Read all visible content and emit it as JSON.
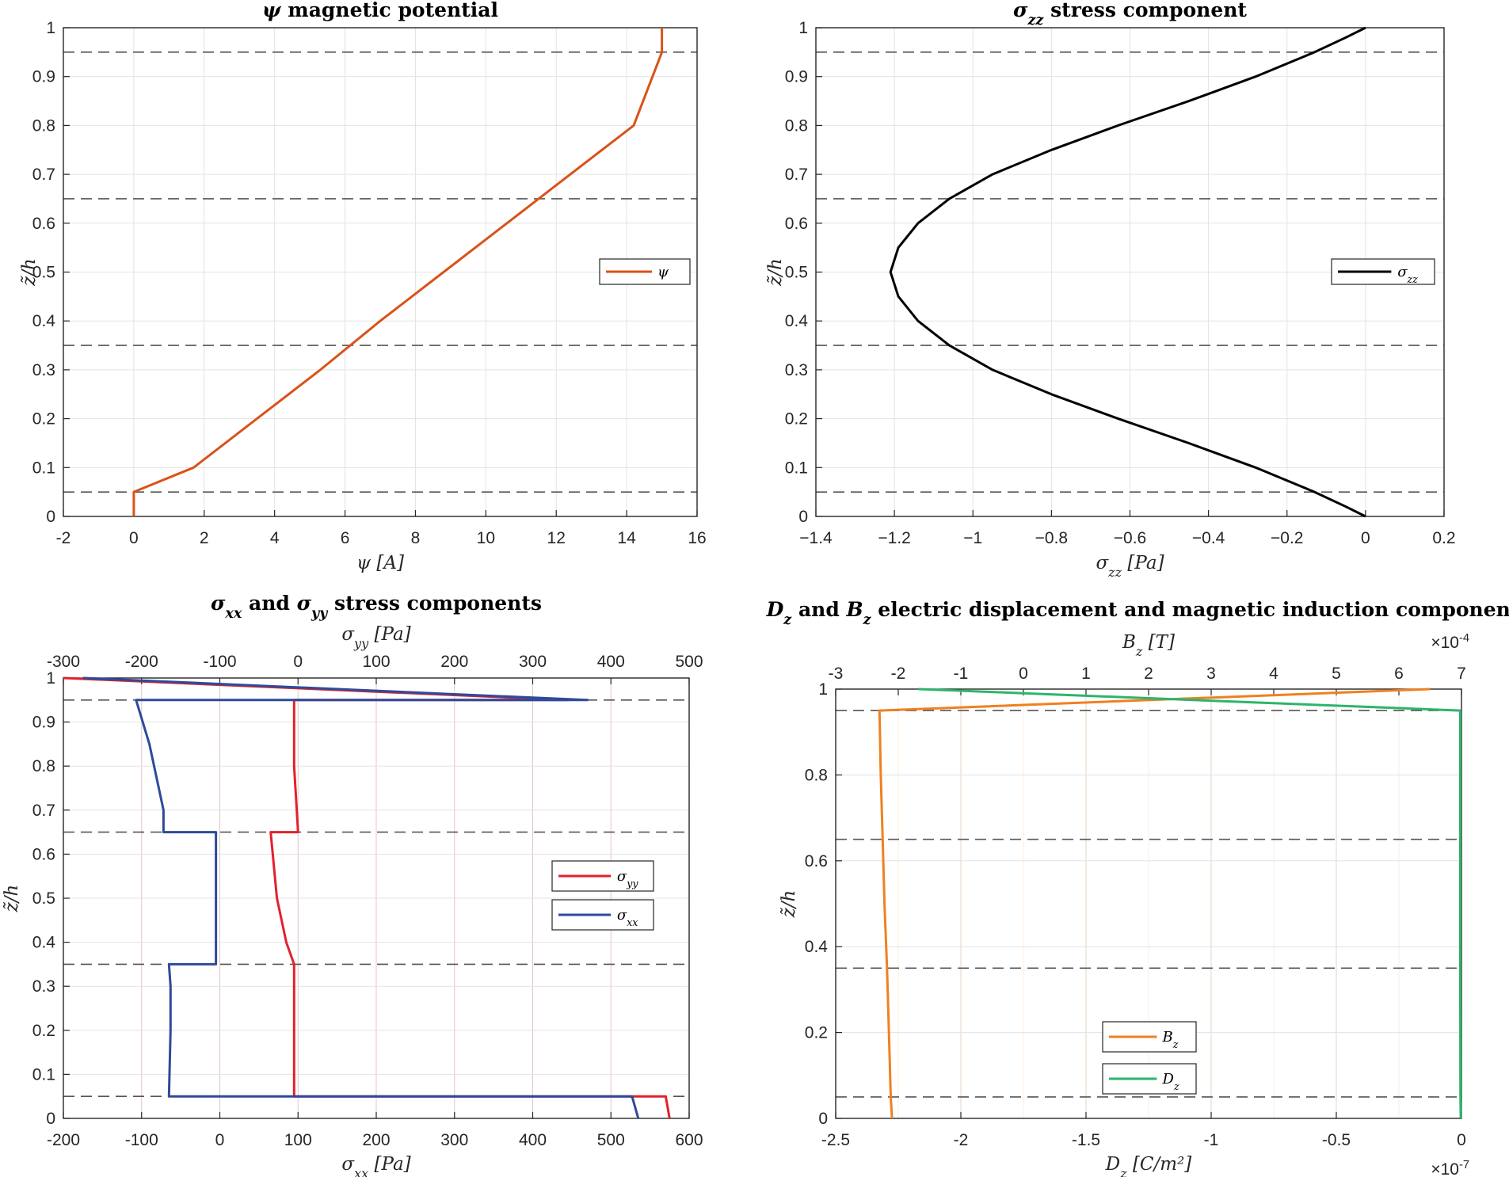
{
  "figure": {
    "layer_boundaries": [
      0.05,
      0.35,
      0.65,
      0.95
    ]
  },
  "chart_data": [
    {
      "id": "psi",
      "type": "line",
      "title": "ψ magnetic potential",
      "xlabel": "ψ [A]",
      "ylabel": "z̃/h",
      "xlim": [
        -2,
        16
      ],
      "ylim": [
        0,
        1
      ],
      "xticks": [
        -2,
        0,
        2,
        4,
        6,
        8,
        10,
        12,
        14,
        16
      ],
      "xtick_labels": [
        "-2",
        "0",
        "2",
        "4",
        "6",
        "8",
        "10",
        "12",
        "14",
        "16"
      ],
      "yticks": [
        0,
        0.1,
        0.2,
        0.3,
        0.4,
        0.5,
        0.6,
        0.7,
        0.8,
        0.9,
        1
      ],
      "ytick_labels": [
        "0",
        "0.1",
        "0.2",
        "0.3",
        "0.4",
        "0.5",
        "0.6",
        "0.7",
        "0.8",
        "0.9",
        "1"
      ],
      "grid": true,
      "legend_position": "right",
      "series": [
        {
          "name": "ψ",
          "color": "#D95319",
          "x": [
            0,
            0,
            1.7,
            3.5,
            5.3,
            7.0,
            8.8,
            10.6,
            12.4,
            14.2,
            15.0,
            15.0
          ],
          "y": [
            0,
            0.05,
            0.1,
            0.2,
            0.3,
            0.4,
            0.5,
            0.6,
            0.7,
            0.8,
            0.95,
            1.0
          ]
        }
      ]
    },
    {
      "id": "szz",
      "type": "line",
      "title": "σzz stress component",
      "xlabel": "σzz [Pa]",
      "ylabel": "z̃/h",
      "xlim": [
        -1.4,
        0.2
      ],
      "ylim": [
        0,
        1
      ],
      "xticks": [
        -1.4,
        -1.2,
        -1,
        -0.8,
        -0.6,
        -0.4,
        -0.2,
        0,
        0.2
      ],
      "xtick_labels": [
        "−1.4",
        "−1.2",
        "−1",
        "−0.8",
        "−0.6",
        "−0.4",
        "−0.2",
        "0",
        "0.2"
      ],
      "yticks": [
        0,
        0.1,
        0.2,
        0.3,
        0.4,
        0.5,
        0.6,
        0.7,
        0.8,
        0.9,
        1
      ],
      "ytick_labels": [
        "0",
        "0.1",
        "0.2",
        "0.3",
        "0.4",
        "0.5",
        "0.6",
        "0.7",
        "0.8",
        "0.9",
        "1"
      ],
      "grid": true,
      "legend_position": "right",
      "series": [
        {
          "name": "σzz",
          "color": "#000000",
          "x": [
            0,
            -0.05,
            -0.13,
            -0.28,
            -0.45,
            -0.63,
            -0.8,
            -0.95,
            -1.06,
            -1.14,
            -1.19,
            -1.21,
            -1.19,
            -1.14,
            -1.06,
            -0.95,
            -0.8,
            -0.63,
            -0.45,
            -0.28,
            -0.13,
            -0.05,
            0
          ],
          "y": [
            0,
            0.02,
            0.05,
            0.1,
            0.15,
            0.2,
            0.25,
            0.3,
            0.35,
            0.4,
            0.45,
            0.5,
            0.55,
            0.6,
            0.65,
            0.7,
            0.75,
            0.8,
            0.85,
            0.9,
            0.95,
            0.98,
            1.0
          ]
        }
      ]
    },
    {
      "id": "sxx_syy",
      "type": "line",
      "title": "σxx and σyy stress components",
      "xlabel": "σxx [Pa]",
      "x2label": "σyy [Pa]",
      "ylabel": "z̃/h",
      "xlim": [
        -200,
        600
      ],
      "x2lim": [
        -300,
        500
      ],
      "ylim": [
        0,
        1
      ],
      "xticks": [
        -200,
        -100,
        0,
        100,
        200,
        300,
        400,
        500,
        600
      ],
      "xtick_labels": [
        "-200",
        "-100",
        "0",
        "100",
        "200",
        "300",
        "400",
        "500",
        "600"
      ],
      "x2ticks": [
        -300,
        -200,
        -100,
        0,
        100,
        200,
        300,
        400,
        500
      ],
      "x2tick_labels": [
        "-300",
        "-200",
        "-100",
        "0",
        "100",
        "200",
        "300",
        "400",
        "500"
      ],
      "yticks": [
        0,
        0.1,
        0.2,
        0.3,
        0.4,
        0.5,
        0.6,
        0.7,
        0.8,
        0.9,
        1
      ],
      "ytick_labels": [
        "0",
        "0.1",
        "0.2",
        "0.3",
        "0.4",
        "0.5",
        "0.6",
        "0.7",
        "0.8",
        "0.9",
        "1"
      ],
      "x_color": "#2E4A9B",
      "x2_color": "#E3212B",
      "grid": true,
      "legend_position": "right",
      "series": [
        {
          "name": "σyy",
          "color": "#E3212B",
          "axis": "x2",
          "x": [
            475,
            470,
            -5,
            -5,
            -5,
            -5,
            -5,
            -15,
            -27,
            -35,
            0,
            0,
            -5,
            -5,
            345,
            -300
          ],
          "y": [
            0,
            0.05,
            0.05,
            0.2,
            0.35,
            0.35,
            0.35,
            0.4,
            0.5,
            0.65,
            0.65,
            0.65,
            0.8,
            0.95,
            0.95,
            1.0
          ]
        },
        {
          "name": "σxx",
          "color": "#2E4A9B",
          "axis": "x",
          "x": [
            535,
            527,
            -65,
            -63,
            -63,
            -65,
            -5,
            -5,
            -5,
            -5,
            -72,
            -72,
            -90,
            -107,
            470,
            -175
          ],
          "y": [
            0,
            0.05,
            0.05,
            0.2,
            0.3,
            0.35,
            0.35,
            0.5,
            0.65,
            0.65,
            0.65,
            0.7,
            0.85,
            0.95,
            0.95,
            1.0
          ]
        }
      ]
    },
    {
      "id": "dz_bz",
      "type": "line",
      "title": "Dz and Bz electric displacement and magnetic induction components",
      "xlabel": "Dz [C/m²]",
      "x2label": "Bz [T]",
      "ylabel": "z̃/h",
      "xlim": [
        -2.5,
        0
      ],
      "x2lim": [
        -3,
        7
      ],
      "ylim": [
        0,
        1
      ],
      "x_exponent": "×10",
      "x_exponent_power": "-7",
      "x2_exponent": "×10",
      "x2_exponent_power": "-4",
      "xticks": [
        -2.5,
        -2,
        -1.5,
        -1,
        -0.5,
        0
      ],
      "xtick_labels": [
        "-2.5",
        "-2",
        "-1.5",
        "-1",
        "-0.5",
        "0"
      ],
      "x2ticks": [
        -3,
        -2,
        -1,
        0,
        1,
        2,
        3,
        4,
        5,
        6,
        7
      ],
      "x2tick_labels": [
        "-3",
        "-2",
        "-1",
        "0",
        "1",
        "2",
        "3",
        "4",
        "5",
        "6",
        "7"
      ],
      "yticks": [
        0,
        0.2,
        0.4,
        0.6,
        0.8,
        1
      ],
      "ytick_labels": [
        "0",
        "0.2",
        "0.4",
        "0.6",
        "0.8",
        "1"
      ],
      "x_color": "#2DB56B",
      "x2_color": "#F08020",
      "grid": true,
      "legend_position": "bottom-center",
      "series": [
        {
          "name": "Bz",
          "color": "#F08020",
          "axis": "x2",
          "x": [
            -2.1,
            -2.12,
            -2.15,
            -2.18,
            -2.22,
            -2.25,
            -2.28,
            -2.3,
            6.5
          ],
          "y": [
            0,
            0.05,
            0.2,
            0.35,
            0.5,
            0.65,
            0.8,
            0.95,
            1.0
          ]
        },
        {
          "name": "Dz",
          "color": "#2DB56B",
          "axis": "x",
          "x": [
            -0.003,
            -0.004,
            -0.005,
            -0.005,
            -0.005,
            -0.005,
            -0.005,
            -2.17
          ],
          "y": [
            0,
            0.05,
            0.35,
            0.5,
            0.65,
            0.8,
            0.95,
            1.0
          ]
        }
      ]
    }
  ]
}
